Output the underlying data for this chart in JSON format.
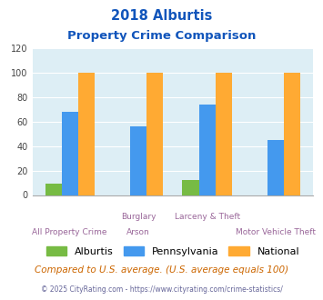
{
  "title_line1": "2018 Alburtis",
  "title_line2": "Property Crime Comparison",
  "series": {
    "Alburtis": [
      9,
      0,
      12,
      0
    ],
    "Pennsylvania": [
      68,
      56,
      74,
      45
    ],
    "National": [
      100,
      100,
      100,
      100
    ]
  },
  "colors": {
    "Alburtis": "#77bb44",
    "Pennsylvania": "#4499ee",
    "National": "#ffaa33"
  },
  "ylim": [
    0,
    120
  ],
  "yticks": [
    0,
    20,
    40,
    60,
    80,
    100,
    120
  ],
  "plot_bg": "#ddeef5",
  "footer_text": "Compared to U.S. average. (U.S. average equals 100)",
  "credit_text": "© 2025 CityRating.com - https://www.cityrating.com/crime-statistics/",
  "title_color": "#1155bb",
  "xlabel_top_color": "#996699",
  "xlabel_bot_color": "#996699",
  "footer_color": "#cc6600",
  "credit_color": "#666699",
  "grid_color": "#ffffff",
  "group_positions": [
    0,
    1,
    2,
    3
  ],
  "top_row_labels": [
    "",
    "Burglary",
    "Larceny & Theft",
    ""
  ],
  "bot_row_labels": [
    "All Property Crime",
    "Arson",
    "",
    "Motor Vehicle Theft"
  ]
}
